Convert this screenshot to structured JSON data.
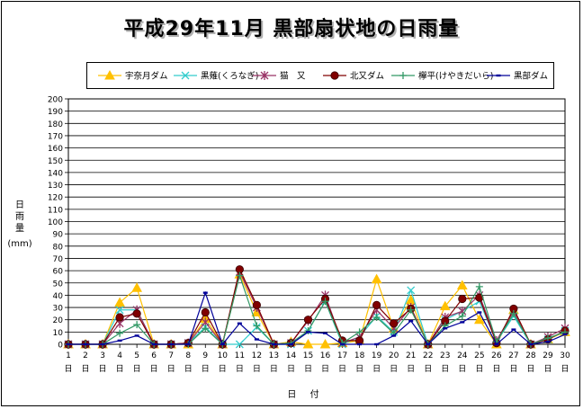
{
  "chart_data": {
    "type": "line",
    "title": "平成29年11月 黒部扇状地の日雨量",
    "ylabel": "日雨量",
    "yunit": "(mm)",
    "xlabel": "日 付",
    "ylim": [
      0,
      200
    ],
    "yticks": [
      0,
      10,
      20,
      30,
      40,
      50,
      60,
      70,
      80,
      90,
      100,
      110,
      120,
      130,
      140,
      150,
      160,
      170,
      180,
      190,
      200
    ],
    "grid": true,
    "legend_position": "top",
    "x": [
      "1",
      "2",
      "3",
      "4",
      "5",
      "6",
      "7",
      "8",
      "9",
      "10",
      "11",
      "12",
      "13",
      "14",
      "15",
      "16",
      "17",
      "18",
      "19",
      "20",
      "21",
      "22",
      "23",
      "24",
      "25",
      "26",
      "27",
      "28",
      "29",
      "30"
    ],
    "x_suffix": "日",
    "series": [
      {
        "name": "宇奈月ダム",
        "color": "#ffc000",
        "marker": "triangle",
        "values": [
          0,
          0,
          0,
          34,
          46,
          0,
          0,
          0,
          21,
          0,
          57,
          26,
          0,
          2,
          0,
          0,
          1,
          3,
          53,
          13,
          36,
          0,
          31,
          48,
          20,
          0,
          28,
          0,
          4,
          10
        ]
      },
      {
        "name": "黒薙(くろなぎ)",
        "color": "#33cccc",
        "marker": "x",
        "values": [
          0,
          0,
          0,
          28,
          28,
          0,
          0,
          1,
          14,
          0,
          0,
          14,
          0,
          0,
          11,
          35,
          0,
          6,
          23,
          10,
          44,
          0,
          20,
          27,
          35,
          2,
          23,
          0,
          4,
          11
        ]
      },
      {
        "name": "猫　又",
        "color": "#993366",
        "marker": "star",
        "values": [
          0,
          0,
          0,
          17,
          28,
          0,
          0,
          1,
          18,
          0,
          59,
          30,
          0,
          1,
          19,
          40,
          1,
          6,
          28,
          13,
          30,
          0,
          22,
          27,
          40,
          3,
          27,
          0,
          6,
          13
        ]
      },
      {
        "name": "北又ダム",
        "color": "#800000",
        "marker": "circle",
        "values": [
          0,
          0,
          0,
          22,
          25,
          0,
          0,
          1,
          26,
          0,
          61,
          32,
          0,
          1,
          20,
          37,
          3,
          3,
          32,
          17,
          29,
          0,
          19,
          37,
          38,
          1,
          29,
          0,
          4,
          11
        ]
      },
      {
        "name": "欅平(けやきだいら)",
        "color": "#339966",
        "marker": "plus",
        "values": [
          0,
          0,
          0,
          9,
          16,
          0,
          0,
          0,
          13,
          0,
          56,
          15,
          0,
          1,
          11,
          35,
          1,
          10,
          22,
          9,
          28,
          0,
          15,
          23,
          47,
          2,
          25,
          0,
          5,
          10
        ]
      },
      {
        "name": "黒部ダム",
        "color": "#000099",
        "marker": "dash",
        "values": [
          0,
          0,
          0,
          3,
          7,
          0,
          0,
          0,
          42,
          0,
          17,
          4,
          0,
          0,
          10,
          9,
          0,
          0,
          0,
          7,
          19,
          0,
          13,
          18,
          26,
          0,
          12,
          0,
          2,
          8
        ]
      }
    ]
  }
}
